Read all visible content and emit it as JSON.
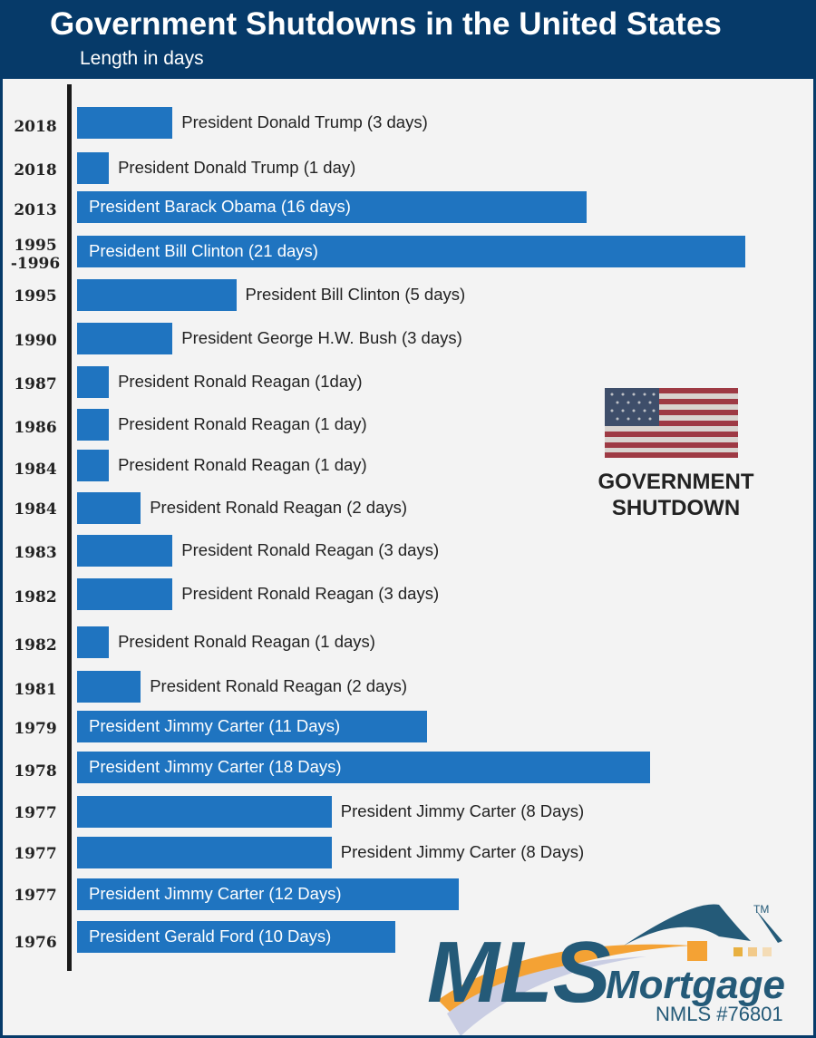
{
  "chart_data": {
    "type": "bar",
    "orientation": "horizontal",
    "title": "Government Shutdowns in the United States",
    "subtitle": "Length in days",
    "xlabel": "Length in days",
    "ylabel": "",
    "xlim": [
      0,
      21
    ],
    "grid": false,
    "categories": [
      "2018",
      "2018",
      "2013",
      "1995\n-1996",
      "1995",
      "1990",
      "1987",
      "1986",
      "1984",
      "1984",
      "1983",
      "1982",
      "1982",
      "1981",
      "1979",
      "1978",
      "1977",
      "1977",
      "1977",
      "1976"
    ],
    "values": [
      3,
      1,
      16,
      21,
      5,
      3,
      1,
      1,
      1,
      2,
      3,
      3,
      1,
      2,
      11,
      18,
      8,
      8,
      12,
      10
    ],
    "labels": [
      "President Donald Trump (3 days)",
      "President Donald Trump (1 day)",
      "President Barack Obama (16 days)",
      "President Bill Clinton (21 days)",
      "President Bill Clinton (5 days)",
      "President George H.W. Bush (3 days)",
      "President Ronald Reagan (1day)",
      "President Ronald Reagan (1 day)",
      "President Ronald Reagan (1 day)",
      "President Ronald Reagan (2 days)",
      "President Ronald Reagan (3 days)",
      "President Ronald Reagan (3 days)",
      "President Ronald Reagan (1 days)",
      "President Ronald Reagan (2 days)",
      "President Jimmy Carter (11 Days)",
      "President Jimmy Carter (18 Days)",
      "President Jimmy Carter (8 Days)",
      "President Jimmy Carter (8 Days)",
      "President Jimmy Carter (12 Days)",
      "President Gerald Ford (10 Days)"
    ],
    "label_inside": [
      false,
      false,
      true,
      true,
      false,
      false,
      false,
      false,
      false,
      false,
      false,
      false,
      false,
      false,
      true,
      true,
      false,
      false,
      true,
      true
    ],
    "bar_color": "#1f74c0"
  },
  "badge": {
    "line1": "GOVERNMENT",
    "line2": "SHUTDOWN"
  },
  "logo": {
    "brand": "MLS",
    "word": "Mortgage",
    "tm": "TM",
    "nmls": "NMLS #76801"
  },
  "colors": {
    "header": "#063a69",
    "background": "#f3f3f3",
    "logo_teal": "#245a78",
    "logo_orange": "#f4a234"
  }
}
